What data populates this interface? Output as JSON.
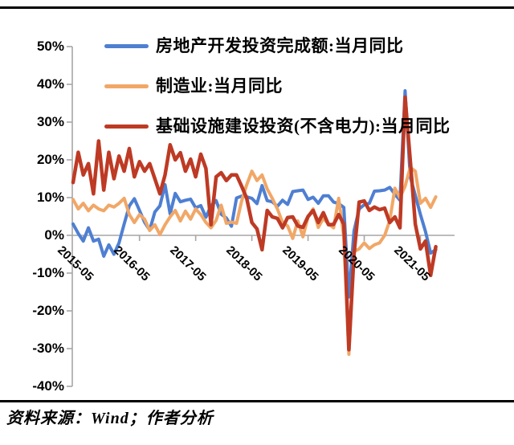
{
  "legend": {
    "items": [
      {
        "label": "房地产开发投资完成额:当月同比"
      },
      {
        "label": "制造业:当月同比"
      },
      {
        "label": "基础设施建设投资(不含电力):当月同比"
      }
    ]
  },
  "source_note": "资料来源：Wind；作者分析",
  "colors": {
    "axis": "#a6a6a6",
    "real_estate_blue": "#4e7fd2",
    "manufacturing_orange": "#f1a767",
    "infrastructure_red": "#be3a24",
    "rule_black": "#000000"
  },
  "chart_data": {
    "type": "line",
    "title": "",
    "xlabel": "",
    "ylabel": "",
    "ylim": [
      -40,
      50
    ],
    "grid": false,
    "legend_position": "top-left",
    "y_ticks": [
      {
        "label": "50%",
        "value": 50
      },
      {
        "label": "40%",
        "value": 40
      },
      {
        "label": "30%",
        "value": 30
      },
      {
        "label": "20%",
        "value": 20
      },
      {
        "label": "10%",
        "value": 10
      },
      {
        "label": "0%",
        "value": 0
      },
      {
        "label": "-10%",
        "value": -10
      },
      {
        "label": "-20%",
        "value": -20
      },
      {
        "label": "-30%",
        "value": -30
      },
      {
        "label": "-40%",
        "value": -40
      }
    ],
    "x_ticks": [
      {
        "label": "2015-05",
        "index": 2
      },
      {
        "label": "2016-05",
        "index": 13
      },
      {
        "label": "2017-05",
        "index": 24
      },
      {
        "label": "2018-05",
        "index": 35
      },
      {
        "label": "2019-05",
        "index": 46
      },
      {
        "label": "2020-05",
        "index": 57
      },
      {
        "label": "2021-05",
        "index": 68
      }
    ],
    "x": [
      "2015-03",
      "2015-04",
      "2015-05",
      "2015-06",
      "2015-07",
      "2015-08",
      "2015-09",
      "2015-10",
      "2015-11",
      "2015-12",
      "2016-02",
      "2016-03",
      "2016-04",
      "2016-05",
      "2016-06",
      "2016-07",
      "2016-08",
      "2016-09",
      "2016-10",
      "2016-11",
      "2016-12",
      "2017-02",
      "2017-03",
      "2017-04",
      "2017-05",
      "2017-06",
      "2017-07",
      "2017-08",
      "2017-09",
      "2017-10",
      "2017-11",
      "2017-12",
      "2018-02",
      "2018-03",
      "2018-04",
      "2018-05",
      "2018-06",
      "2018-07",
      "2018-08",
      "2018-09",
      "2018-10",
      "2018-11",
      "2018-12",
      "2019-02",
      "2019-03",
      "2019-04",
      "2019-05",
      "2019-06",
      "2019-07",
      "2019-08",
      "2019-09",
      "2019-10",
      "2019-11",
      "2019-12",
      "2020-02",
      "2020-03",
      "2020-04",
      "2020-05",
      "2020-06",
      "2020-07",
      "2020-08",
      "2020-09",
      "2020-10",
      "2020-11",
      "2020-12",
      "2021-02",
      "2021-03",
      "2021-04",
      "2021-05",
      "2021-06",
      "2021-07",
      "2021-08"
    ],
    "series": [
      {
        "name": "房地产开发投资完成额:当月同比",
        "color": "#4e7fd2",
        "values": [
          3,
          0.5,
          -1.5,
          2,
          -1.5,
          -1,
          -5.5,
          -2.5,
          -5,
          -2,
          3,
          7.8,
          9.7,
          6.6,
          3.5,
          1.4,
          6.2,
          7.8,
          13.4,
          5.7,
          11.1,
          8.9,
          9.3,
          9.6,
          7.3,
          7.9,
          4.8,
          7.8,
          9.2,
          5.6,
          4.6,
          2.4,
          9.9,
          10.4,
          10.2,
          9.8,
          8.4,
          13.2,
          9.2,
          8.9,
          7.7,
          9.3,
          8.2,
          11.6,
          11.8,
          12,
          9.5,
          10.1,
          8.5,
          10.5,
          10.5,
          8.8,
          8.4,
          7.4,
          -16.3,
          1.2,
          7,
          8.1,
          8.5,
          11.7,
          11.8,
          12,
          12.7,
          10.9,
          9.3,
          38.3,
          15.5,
          10.6,
          5.5,
          1,
          -4.7,
          -3.8
        ]
      },
      {
        "name": "制造业:当月同比",
        "color": "#f1a767",
        "values": [
          9.5,
          7,
          8.5,
          6.5,
          8,
          7,
          6.5,
          8,
          7.5,
          8.5,
          9.8,
          5.5,
          3.4,
          5.5,
          4.3,
          1.3,
          2.8,
          0.2,
          2.8,
          4.9,
          6.6,
          3.8,
          6.4,
          4.3,
          7,
          5.5,
          3.4,
          2,
          4,
          8,
          3.2,
          3.5,
          3.2,
          9.1,
          13.4,
          17,
          14.5,
          16,
          12.3,
          9.8,
          7,
          3.4,
          2.5,
          -0.8,
          3.8,
          -0.4,
          4.9,
          7,
          2.1,
          4.5,
          3,
          2,
          9.8,
          -0.4,
          -31.5,
          -4.3,
          -3.6,
          -2,
          -3.5,
          -2.5,
          -2,
          0,
          3.9,
          12.5,
          10,
          13,
          18,
          17,
          8.5,
          9.8,
          7.4,
          10.2
        ]
      },
      {
        "name": "基础设施建设投资(不含电力):当月同比",
        "color": "#be3a24",
        "values": [
          14,
          22,
          16,
          19,
          11,
          25,
          12,
          22,
          15,
          21,
          17,
          23,
          15.5,
          19.5,
          17,
          19,
          15,
          11,
          16,
          24,
          20,
          21.9,
          17,
          20.2,
          15.5,
          21.5,
          17.7,
          2.8,
          15.5,
          16.6,
          14.5,
          16,
          16,
          13,
          9.8,
          3.4,
          1.7,
          -3.8,
          6.6,
          4.9,
          4.5,
          2,
          4.7,
          4.9,
          2.5,
          2.1,
          5,
          6.6,
          3.4,
          6,
          2.8,
          2.9,
          5.5,
          3,
          -30.3,
          -5,
          8.8,
          9.1,
          6.6,
          7.5,
          6.8,
          7.2,
          3.4,
          4.9,
          2,
          36.6,
          20,
          3,
          -3.6,
          -1.5,
          -10.6,
          -3
        ]
      }
    ]
  }
}
